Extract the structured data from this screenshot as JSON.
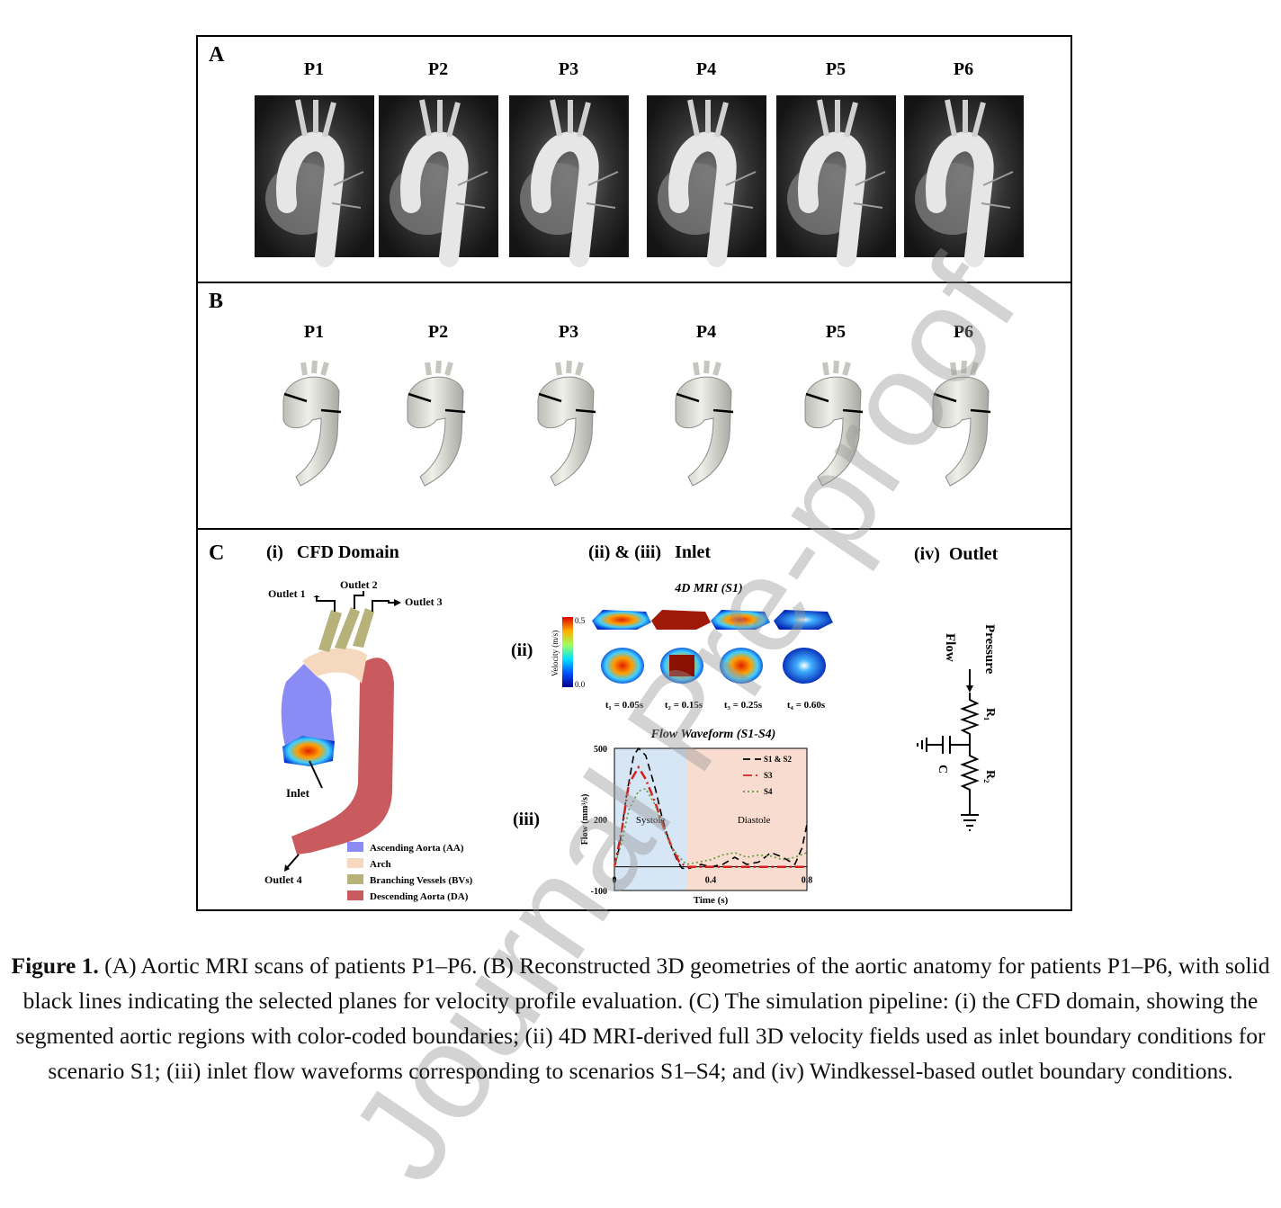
{
  "panel_a": {
    "letter": "A",
    "patients": [
      "P1",
      "P2",
      "P3",
      "P4",
      "P5",
      "P6"
    ]
  },
  "panel_b": {
    "letter": "B",
    "patients": [
      "P1",
      "P2",
      "P3",
      "P4",
      "P5",
      "P6"
    ]
  },
  "panel_c": {
    "letter": "C",
    "section_i": {
      "title": "(i)   CFD Domain",
      "outlet1": "Outlet 1",
      "outlet2": "Outlet 2",
      "outlet3": "Outlet 3",
      "outlet4": "Outlet 4",
      "inlet": "Inlet",
      "legend": [
        {
          "label": "Ascending Aorta (AA)",
          "color": "#8b8bf5"
        },
        {
          "label": "Arch",
          "color": "#f6d8bf"
        },
        {
          "label": "Branching Vessels (BVs)",
          "color": "#b7b27a"
        },
        {
          "label": "Descending Aorta (DA)",
          "color": "#c95a5e"
        }
      ]
    },
    "section_ii_iii": {
      "title": "(ii) & (iii)   Inlet",
      "ii_label": "(ii)",
      "iii_label": "(iii)",
      "mri_title": "4D MRI (S1)",
      "colorbar_label": "Velocity (m/s)",
      "colorbar_max": "0.5",
      "colorbar_min": "0.0",
      "time_labels": [
        "t₁ = 0.05s",
        "t₂ = 0.15s",
        "t₃ = 0.25s",
        "t₄ = 0.60s"
      ],
      "waveform_title": "Flow Waveform (S1-S4)"
    },
    "section_iv": {
      "title": "(iv)  Outlet",
      "flow": "Flow",
      "pressure": "Pressure",
      "r1": "R₁",
      "r2": "R₂",
      "c": "C"
    }
  },
  "chart_data": {
    "type": "line",
    "title": "Flow Waveform (S1-S4)",
    "xlabel": "Time (s)",
    "ylabel": "Flow (mm³/s)",
    "xlim": [
      0,
      0.8
    ],
    "ylim": [
      -100,
      500
    ],
    "xticks": [
      "0",
      "0.4",
      "0.8"
    ],
    "yticks": [
      "500",
      "200",
      "-100"
    ],
    "regions": [
      {
        "label": "Systole",
        "x": [
          0,
          0.3
        ],
        "color": "#d6e6f5"
      },
      {
        "label": "Diastole",
        "x": [
          0,
          0.8
        ],
        "color": "#f8dccf"
      }
    ],
    "legend_placement": "top-right",
    "series": [
      {
        "name": "S1 & S2",
        "color": "#000000",
        "style": "dashed",
        "x": [
          0,
          0.02,
          0.05,
          0.08,
          0.1,
          0.13,
          0.17,
          0.2,
          0.23,
          0.26,
          0.28,
          0.3,
          0.33,
          0.36,
          0.4,
          0.45,
          0.5,
          0.55,
          0.6,
          0.65,
          0.7,
          0.75,
          0.78,
          0.8
        ],
        "y": [
          0,
          80,
          300,
          470,
          500,
          470,
          330,
          200,
          100,
          30,
          -5,
          -10,
          0,
          10,
          0,
          10,
          40,
          10,
          20,
          60,
          40,
          10,
          80,
          180
        ]
      },
      {
        "name": "S3",
        "color": "#d62020",
        "style": "dashdot",
        "x": [
          0,
          0.03,
          0.06,
          0.1,
          0.13,
          0.17,
          0.2,
          0.24,
          0.27,
          0.3,
          0.35,
          0.4,
          0.5,
          0.6,
          0.7,
          0.8
        ],
        "y": [
          0,
          150,
          350,
          420,
          370,
          270,
          180,
          80,
          20,
          0,
          0,
          0,
          0,
          0,
          0,
          0
        ]
      },
      {
        "name": "S4",
        "color": "#5a9a3a",
        "style": "dotted",
        "x": [
          0,
          0.03,
          0.06,
          0.1,
          0.13,
          0.17,
          0.2,
          0.24,
          0.27,
          0.3,
          0.35,
          0.4,
          0.45,
          0.5,
          0.55,
          0.6,
          0.65,
          0.7,
          0.75,
          0.8
        ],
        "y": [
          0,
          100,
          240,
          320,
          330,
          260,
          170,
          80,
          40,
          10,
          20,
          30,
          50,
          60,
          40,
          50,
          45,
          30,
          40,
          60
        ]
      }
    ]
  },
  "caption": {
    "label": "Figure 1.",
    "text": " (A) Aortic MRI scans of patients P1–P6. (B) Reconstructed 3D geometries of the aortic anatomy for patients P1–P6, with solid black lines indicating the selected planes for velocity profile evaluation. (C) The simulation pipeline: (i) the CFD domain, showing the segmented aortic regions with color-coded boundaries; (ii) 4D MRI-derived full 3D velocity fields used as inlet boundary conditions for scenario S1; (iii) inlet flow waveforms corresponding to scenarios S1–S4; and (iv) Windkessel-based outlet boundary conditions."
  },
  "watermark": "Journal Pre-proof"
}
